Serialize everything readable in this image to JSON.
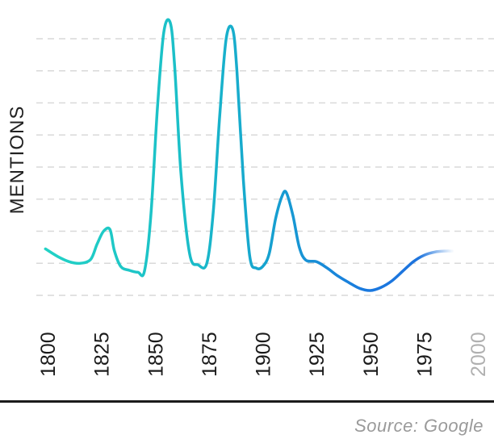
{
  "chart_data": {
    "type": "line",
    "ylabel": "MENTIONS",
    "xlabel": "",
    "title": "",
    "x_ticks": [
      "1800",
      "1825",
      "1850",
      "1875",
      "1900",
      "1925",
      "1950",
      "1975",
      "2000"
    ],
    "xlim": [
      1800,
      2000
    ],
    "ylim": [
      0,
      8
    ],
    "grid": true,
    "series": [
      {
        "color_start": "#22d3c5",
        "color_end": "#1a6fe0",
        "x": [
          1799,
          1805,
          1810,
          1815,
          1820,
          1823,
          1826,
          1829,
          1831,
          1834,
          1838,
          1842,
          1845,
          1848,
          1851,
          1854,
          1857,
          1859,
          1862,
          1866,
          1870,
          1874,
          1877,
          1880,
          1883,
          1886,
          1888,
          1891,
          1894,
          1897,
          1900,
          1903,
          1906,
          1909,
          1911,
          1914,
          1917,
          1920,
          1925,
          1930,
          1935,
          1940,
          1945,
          1950,
          1955,
          1960,
          1965,
          1970,
          1975,
          1980,
          1985,
          1988
        ],
        "y": [
          1.45,
          1.2,
          1.05,
          1.0,
          1.12,
          1.6,
          2.0,
          2.05,
          1.4,
          0.9,
          0.78,
          0.72,
          0.75,
          2.5,
          5.8,
          8.2,
          8.5,
          7.2,
          3.8,
          1.3,
          0.95,
          1.0,
          2.6,
          5.6,
          8.0,
          8.3,
          7.0,
          3.6,
          1.2,
          0.85,
          0.9,
          1.3,
          2.4,
          3.1,
          3.2,
          2.5,
          1.5,
          1.1,
          1.05,
          0.85,
          0.6,
          0.4,
          0.22,
          0.15,
          0.25,
          0.45,
          0.75,
          1.05,
          1.25,
          1.35,
          1.38,
          1.38
        ]
      }
    ],
    "future_tick": "2000",
    "future_tick_color": "#b0b0b0",
    "tick_color": "#1b1b1b",
    "gridline_color": "#d9d9d9"
  },
  "source": "Source: Google"
}
